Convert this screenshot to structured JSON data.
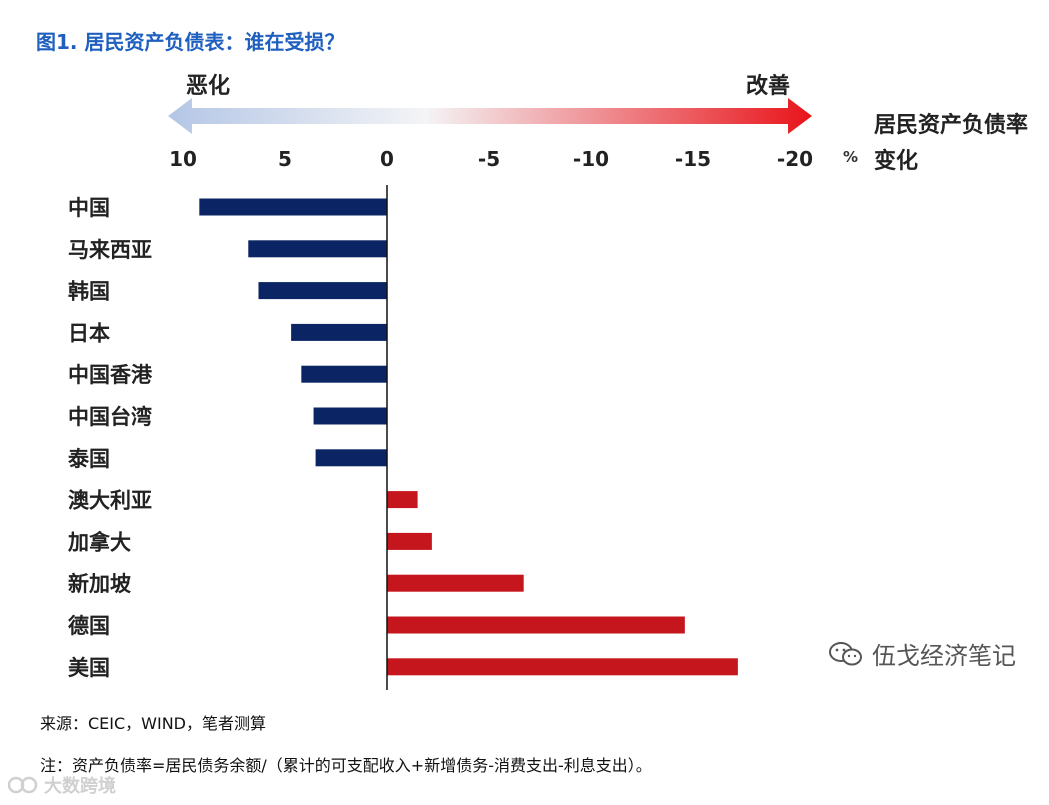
{
  "title": "图1. 居民资产负债表：谁在受损？",
  "legend": {
    "left_label": "恶化",
    "right_label": "改善"
  },
  "axis_unit": "%",
  "ylabel": "居民资产负债率变化",
  "source": "来源：CEIC，WIND，笔者测算",
  "note": "注：资产负债率=居民债务余额/（累计的可支配收入+新增债务-消费支出-利息支出）。",
  "brand": {
    "name": "伍戈经济笔记",
    "icon": "wechat-icon"
  },
  "corner_mark": {
    "name": "大数跨境",
    "icon": "logo-icon"
  },
  "colors": {
    "negative": "#0b2464",
    "positive": "#c4161c",
    "arrow_left": "#b4c6e6",
    "arrow_right": "#e8141a"
  },
  "chart_data": {
    "type": "bar",
    "orientation": "horizontal",
    "categories": [
      "中国",
      "马来西亚",
      "韩国",
      "日本",
      "中国香港",
      "中国台湾",
      "泰国",
      "澳大利亚",
      "加拿大",
      "新加坡",
      "德国",
      "美国"
    ],
    "values": [
      9.2,
      6.8,
      6.3,
      4.7,
      4.2,
      3.6,
      3.5,
      -1.5,
      -2.2,
      -6.7,
      -14.6,
      -17.2
    ],
    "xlim": [
      10,
      -20
    ],
    "xticks": [
      10,
      5,
      0,
      -5,
      -10,
      -15,
      -20
    ],
    "xtick_labels": [
      "10",
      "5",
      "0",
      "-5",
      "-10",
      "-15",
      "-20"
    ],
    "axis_position": "top",
    "grid": false
  }
}
